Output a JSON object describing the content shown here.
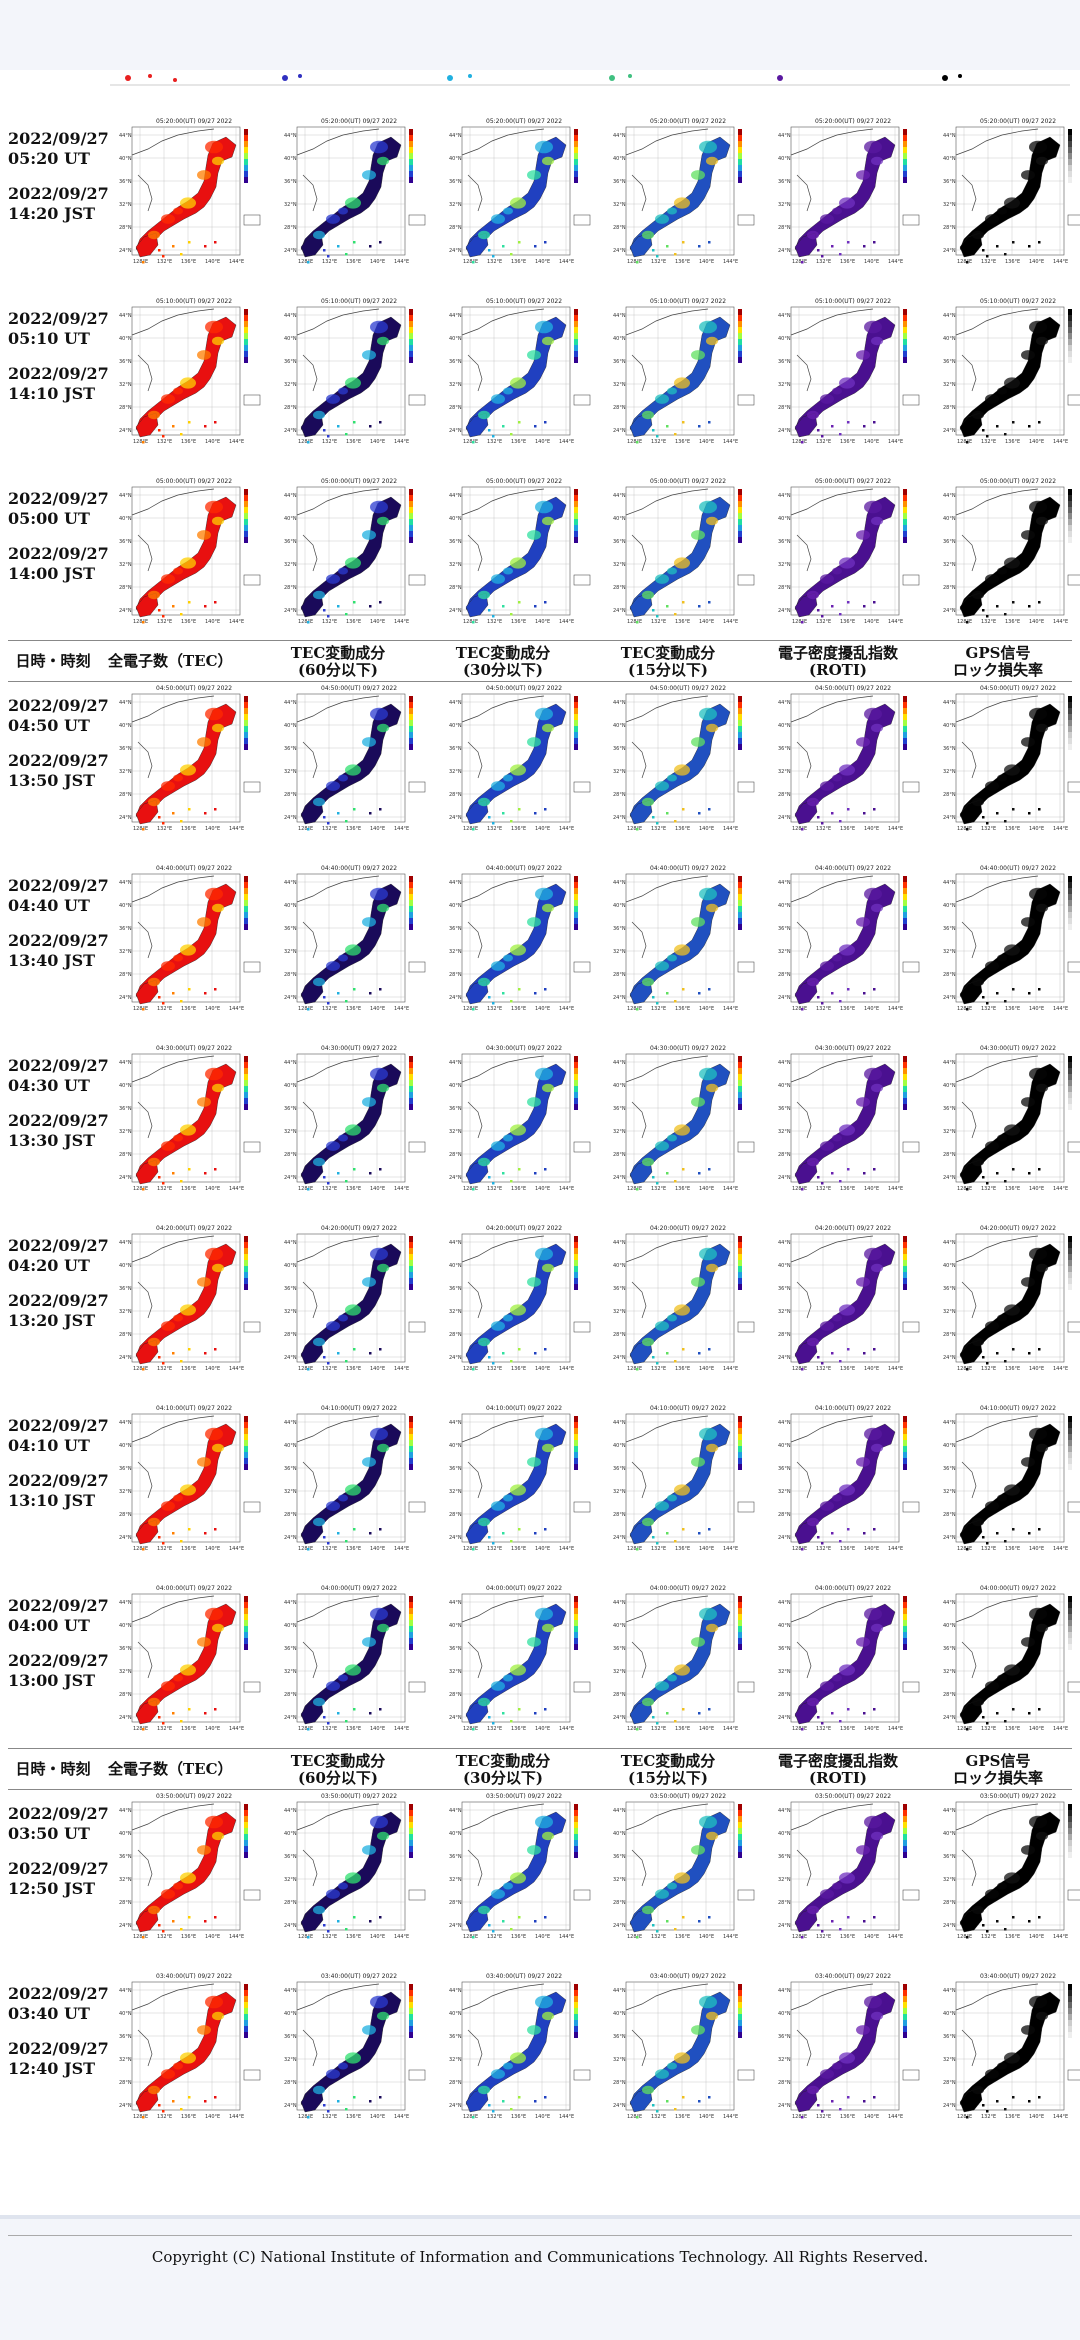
{
  "headers": {
    "datetime": "日時・時刻",
    "tec": "全電子数（TEC）",
    "tec60_line1": "TEC変動成分",
    "tec60_line2": "(60分以下)",
    "tec30_line1": "TEC変動成分",
    "tec30_line2": "(30分以下)",
    "tec15_line1": "TEC変動成分",
    "tec15_line2": "(15分以下)",
    "roti_line1": "電子密度擾乱指数",
    "roti_line2": "(ROTI)",
    "gps_line1": "GPS信号",
    "gps_line2": "ロック損失率"
  },
  "rows": [
    {
      "utc": "2022/09/27 05:20 UT",
      "jst": "2022/09/27 14:20 JST",
      "title": "05:20:00(UT) 09/27 2022"
    },
    {
      "utc": "2022/09/27 05:10 UT",
      "jst": "2022/09/27 14:10 JST",
      "title": "05:10:00(UT) 09/27 2022"
    },
    {
      "utc": "2022/09/27 05:00 UT",
      "jst": "2022/09/27 14:00 JST",
      "title": "05:00:00(UT) 09/27 2022"
    },
    {
      "utc": "2022/09/27 04:50 UT",
      "jst": "2022/09/27 13:50 JST",
      "title": "04:50:00(UT) 09/27 2022"
    },
    {
      "utc": "2022/09/27 04:40 UT",
      "jst": "2022/09/27 13:40 JST",
      "title": "04:40:00(UT) 09/27 2022"
    },
    {
      "utc": "2022/09/27 04:30 UT",
      "jst": "2022/09/27 13:30 JST",
      "title": "04:30:00(UT) 09/27 2022"
    },
    {
      "utc": "2022/09/27 04:20 UT",
      "jst": "2022/09/27 13:20 JST",
      "title": "04:20:00(UT) 09/27 2022"
    },
    {
      "utc": "2022/09/27 04:10 UT",
      "jst": "2022/09/27 13:10 JST",
      "title": "04:10:00(UT) 09/27 2022"
    },
    {
      "utc": "2022/09/27 04:00 UT",
      "jst": "2022/09/27 13:00 JST",
      "title": "04:00:00(UT) 09/27 2022"
    },
    {
      "utc": "2022/09/27 03:50 UT",
      "jst": "2022/09/27 12:50 JST",
      "title": "03:50:00(UT) 09/27 2022"
    },
    {
      "utc": "2022/09/27 03:40 UT",
      "jst": "2022/09/27 12:40 JST",
      "title": "03:40:00(UT) 09/27 2022"
    }
  ],
  "map_axis": {
    "lat_labels": [
      "44°N",
      "40°N",
      "36°N",
      "32°N",
      "28°N",
      "24°N"
    ],
    "lon_labels": [
      "128°E",
      "132°E",
      "136°E",
      "140°E",
      "144°E"
    ]
  },
  "map_colors": {
    "tec": [
      "#e81010",
      "#ff2a00",
      "#ff7f00",
      "#ffd000"
    ],
    "tec60": [
      "#1a0a5a",
      "#2b3bd0",
      "#20b0e0",
      "#30e070"
    ],
    "tec30": [
      "#2040c0",
      "#20b0e0",
      "#30e0a0",
      "#a0f040"
    ],
    "tec15": [
      "#2050c0",
      "#20c0c0",
      "#60e060",
      "#f0c020"
    ],
    "roti": [
      "#4a1090",
      "#5a18a0",
      "#6a20b0",
      "#7030c0"
    ],
    "gps": [
      "#000000",
      "#050505",
      "#0a0a0a",
      "#111111"
    ]
  },
  "copyright": "Copyright (C) National Institute of Information and Communications Technology. All Rights Reserved."
}
